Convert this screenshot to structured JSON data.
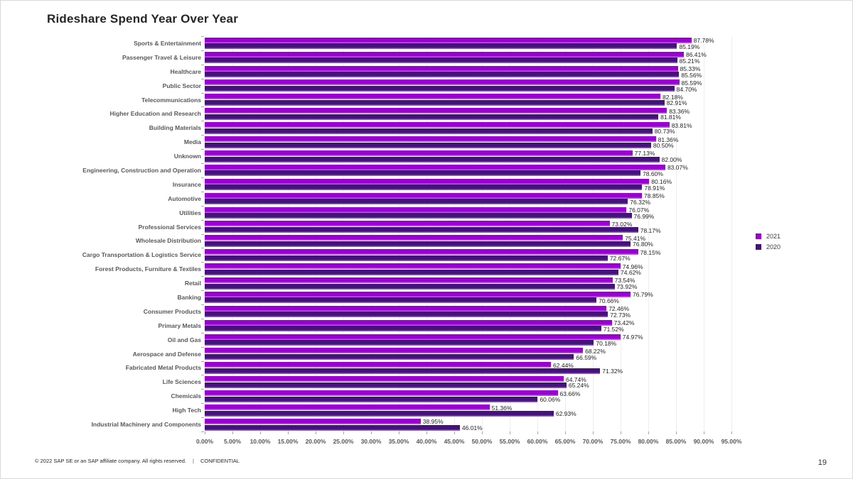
{
  "page": {
    "title": "Rideshare Spend Year Over Year",
    "page_number": "19"
  },
  "footer": {
    "copyright": "© 2022 SAP SE or an SAP affiliate company. All rights reserved.",
    "separator": "|",
    "confidential": "CONFIDENTIAL"
  },
  "legend": {
    "items": [
      {
        "label": "2021",
        "color": "#9b00d3"
      },
      {
        "label": "2020",
        "color": "#44127a"
      }
    ]
  },
  "chart_data": {
    "type": "bar",
    "orientation": "horizontal",
    "title": "Rideshare Spend Year Over Year",
    "xlabel": "",
    "ylabel": "",
    "xlim": [
      0,
      95
    ],
    "x_tick_step": 5,
    "x_tick_labels": [
      "0.00%",
      "5.00%",
      "10.00%",
      "15.00%",
      "20.00%",
      "25.00%",
      "30.00%",
      "35.00%",
      "40.00%",
      "45.00%",
      "50.00%",
      "55.00%",
      "60.00%",
      "65.00%",
      "70.00%",
      "75.00%",
      "80.00%",
      "85.00%",
      "90.00%",
      "95.00%"
    ],
    "grid": true,
    "legend_position": "right",
    "value_label_format": "0.00%",
    "categories": [
      "Sports & Entertainment",
      "Passenger Travel & Leisure",
      "Healthcare",
      "Public Sector",
      "Telecommunications",
      "Higher Education and Research",
      "Building Materials",
      "Media",
      "Unknown",
      "Engineering, Construction and Operation",
      "Insurance",
      "Automotive",
      "Utilities",
      "Professional Services",
      "Wholesale Distribution",
      "Cargo Transportation & Logistics Service",
      "Forest Products, Furniture & Textiles",
      "Retail",
      "Banking",
      "Consumer Products",
      "Primary Metals",
      "Oil and Gas",
      "Aerospace and Defense",
      "Fabricated Metal Products",
      "Life Sciences",
      "Chemicals",
      "High Tech",
      "Industrial Machinery and Components"
    ],
    "series": [
      {
        "name": "2021",
        "color": "#9b00d3",
        "values": [
          87.78,
          86.41,
          85.33,
          85.59,
          82.18,
          83.36,
          83.81,
          81.36,
          77.13,
          83.07,
          80.16,
          78.85,
          76.07,
          73.02,
          75.41,
          78.15,
          74.96,
          73.54,
          76.79,
          72.46,
          73.42,
          74.97,
          68.22,
          62.44,
          64.74,
          63.66,
          51.36,
          38.95
        ]
      },
      {
        "name": "2020",
        "color": "#44127a",
        "values": [
          85.19,
          85.21,
          85.56,
          84.7,
          82.91,
          81.81,
          80.73,
          80.5,
          82.0,
          78.6,
          78.91,
          76.32,
          76.99,
          78.17,
          76.8,
          72.67,
          74.62,
          73.92,
          70.66,
          72.73,
          71.52,
          70.18,
          66.59,
          71.32,
          65.24,
          60.06,
          62.93,
          46.01
        ]
      }
    ]
  }
}
